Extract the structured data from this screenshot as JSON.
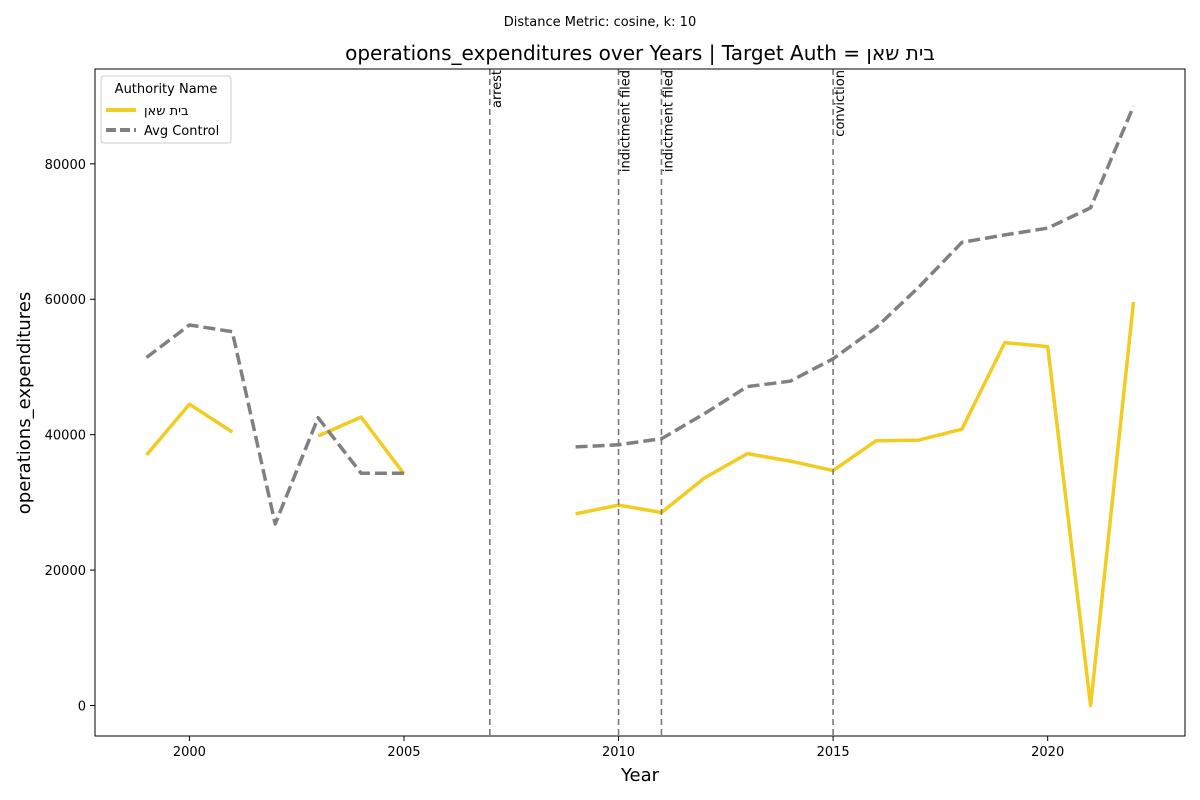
{
  "chart_data": {
    "type": "line",
    "suptitle": "Distance Metric: cosine, k: 10",
    "title": "operations_expenditures over Years | Target Auth = בית שאן",
    "xlabel": "Year",
    "ylabel": "operations_expenditures",
    "xlim": [
      1997.8,
      2023.2
    ],
    "ylim": [
      -4500,
      94000
    ],
    "xticks": [
      2000,
      2005,
      2010,
      2015,
      2020
    ],
    "yticks": [
      0,
      20000,
      40000,
      60000,
      80000
    ],
    "grid": false,
    "legend": {
      "title": "Authority Name",
      "placement": "top-left"
    },
    "series": [
      {
        "name": "בית שאן",
        "color": "#f2cc21",
        "dash": "solid",
        "points": [
          [
            1999,
            37000
          ],
          [
            2000,
            44500
          ],
          [
            2001,
            40400
          ],
          [
            2003,
            39800
          ],
          [
            2004,
            42600
          ],
          [
            2005,
            34200
          ],
          [
            2009,
            28300
          ],
          [
            2010,
            29600
          ],
          [
            2011,
            28500
          ],
          [
            2012,
            33600
          ],
          [
            2013,
            37200
          ],
          [
            2014,
            36100
          ],
          [
            2015,
            34700
          ],
          [
            2016,
            39100
          ],
          [
            2017,
            39200
          ],
          [
            2018,
            40800
          ],
          [
            2019,
            53600
          ],
          [
            2020,
            53000
          ],
          [
            2021,
            0
          ],
          [
            2022,
            59600
          ]
        ],
        "segments": [
          [
            0,
            2
          ],
          [
            3,
            5
          ],
          [
            6,
            19
          ]
        ]
      },
      {
        "name": "Avg Control",
        "color": "#808080",
        "dash": "dashed",
        "points": [
          [
            1999,
            51400
          ],
          [
            2000,
            56200
          ],
          [
            2001,
            55200
          ],
          [
            2002,
            26800
          ],
          [
            2003,
            42500
          ],
          [
            2004,
            34300
          ],
          [
            2005,
            34300
          ],
          [
            2009,
            38200
          ],
          [
            2010,
            38500
          ],
          [
            2011,
            39400
          ],
          [
            2012,
            43100
          ],
          [
            2013,
            47100
          ],
          [
            2014,
            47900
          ],
          [
            2015,
            51200
          ],
          [
            2016,
            55800
          ],
          [
            2017,
            61800
          ],
          [
            2018,
            68400
          ],
          [
            2019,
            69500
          ],
          [
            2020,
            70500
          ],
          [
            2021,
            73500
          ],
          [
            2022,
            88500
          ]
        ],
        "segments": [
          [
            0,
            6
          ],
          [
            7,
            20
          ]
        ]
      }
    ],
    "events": [
      {
        "year": 2007,
        "label": "arrest"
      },
      {
        "year": 2010,
        "label": "indictment filed"
      },
      {
        "year": 2011,
        "label": "indictment filed"
      },
      {
        "year": 2015,
        "label": "conviction"
      }
    ]
  }
}
